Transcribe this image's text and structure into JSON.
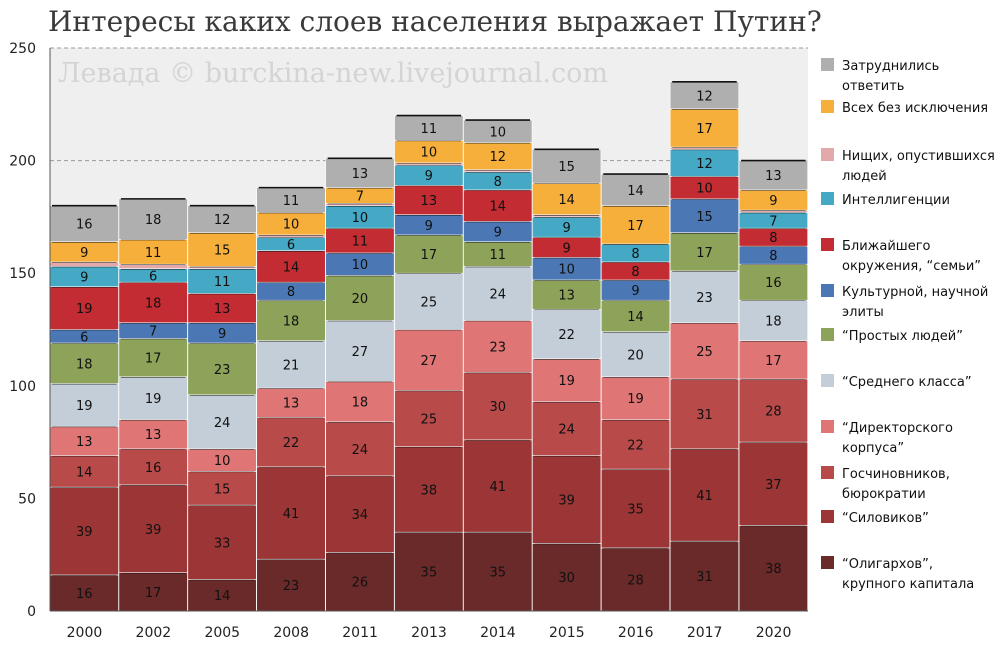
{
  "chart_data": {
    "type": "bar",
    "stacked": true,
    "title": "Интересы каких слоев населения выражает Путин?",
    "watermark": "Левада © burckina-new.livejournal.com",
    "ylim": [
      0,
      250
    ],
    "yticks": [
      "0",
      "50",
      "100",
      "150",
      "200",
      "250"
    ],
    "grid": "horizontal dashed",
    "legend_position": "right",
    "categories": [
      "2000",
      "2002",
      "2005",
      "2008",
      "2011",
      "2013",
      "2014",
      "2015",
      "2016",
      "2017",
      "2020"
    ],
    "series": [
      {
        "name": "“Олигархов”, крупного капитала",
        "color": "#6b2a2a",
        "values": [
          16,
          17,
          14,
          23,
          26,
          35,
          35,
          30,
          28,
          31,
          38
        ]
      },
      {
        "name": "“Силовиков”",
        "color": "#9c3535",
        "values": [
          39,
          39,
          33,
          41,
          34,
          38,
          41,
          39,
          35,
          41,
          37
        ]
      },
      {
        "name": "Госчиновников, бюрократии",
        "color": "#b84a4a",
        "values": [
          14,
          16,
          15,
          22,
          24,
          25,
          30,
          24,
          22,
          31,
          28
        ]
      },
      {
        "name": "“Директорского корпуса”",
        "color": "#df7575",
        "values": [
          13,
          13,
          10,
          13,
          18,
          27,
          23,
          19,
          19,
          25,
          17
        ]
      },
      {
        "name": "“Среднего класса”",
        "color": "#c4ced8",
        "values": [
          19,
          19,
          24,
          21,
          27,
          25,
          24,
          22,
          20,
          23,
          18
        ]
      },
      {
        "name": "“Простых людей”",
        "color": "#8ea35a",
        "values": [
          18,
          17,
          23,
          18,
          20,
          17,
          11,
          13,
          14,
          17,
          16
        ]
      },
      {
        "name": "Культурной, научной элиты",
        "color": "#4b78b5",
        "values": [
          6,
          7,
          9,
          8,
          10,
          9,
          9,
          10,
          9,
          15,
          8
        ]
      },
      {
        "name": "Ближайшего окружения, “семьи”",
        "color": "#c22c32",
        "values": [
          19,
          18,
          13,
          14,
          11,
          13,
          14,
          9,
          8,
          10,
          8
        ]
      },
      {
        "name": "Интеллигенции",
        "color": "#45a9c6",
        "values": [
          9,
          6,
          11,
          6,
          10,
          9,
          8,
          9,
          8,
          12,
          7
        ]
      },
      {
        "name": "Нищих, опустившихся людей",
        "color": "#e3a8aa",
        "values": [
          2,
          2,
          1,
          1,
          1,
          1,
          1,
          1,
          0,
          1,
          1
        ]
      },
      {
        "name": "Всех без исключения",
        "color": "#f7af3c",
        "values": [
          9,
          11,
          15,
          10,
          7,
          10,
          12,
          14,
          17,
          17,
          9
        ]
      },
      {
        "name": "Затруднились ответить",
        "color": "#afafaf",
        "values": [
          16,
          18,
          12,
          11,
          13,
          11,
          10,
          15,
          14,
          12,
          13
        ]
      }
    ],
    "legend": [
      {
        "lines": [
          "Затруднились",
          "ответить"
        ],
        "color": "#afafaf"
      },
      {
        "lines": [
          "Всех без исключения"
        ],
        "color": "#f7af3c"
      },
      {
        "lines": [
          "Нищих, опустившихся",
          "людей"
        ],
        "color": "#e3a8aa"
      },
      {
        "lines": [
          "Интеллигенции"
        ],
        "color": "#45a9c6"
      },
      {
        "lines": [
          "Ближайшего",
          "окружения, “семьи”"
        ],
        "color": "#c22c32"
      },
      {
        "lines": [
          "Культурной, научной",
          "элиты"
        ],
        "color": "#4b78b5"
      },
      {
        "lines": [
          "“Простых людей”"
        ],
        "color": "#8ea35a"
      },
      {
        "lines": [
          "“Среднего класса”"
        ],
        "color": "#c4ced8"
      },
      {
        "lines": [
          "“Директорского",
          "корпуса”"
        ],
        "color": "#df7575"
      },
      {
        "lines": [
          "Госчиновников,",
          "бюрократии"
        ],
        "color": "#b84a4a"
      },
      {
        "lines": [
          "“Силовиков”"
        ],
        "color": "#9c3535"
      },
      {
        "lines": [
          "“Олигархов”,",
          "крупного капитала"
        ],
        "color": "#6b2a2a"
      }
    ]
  }
}
